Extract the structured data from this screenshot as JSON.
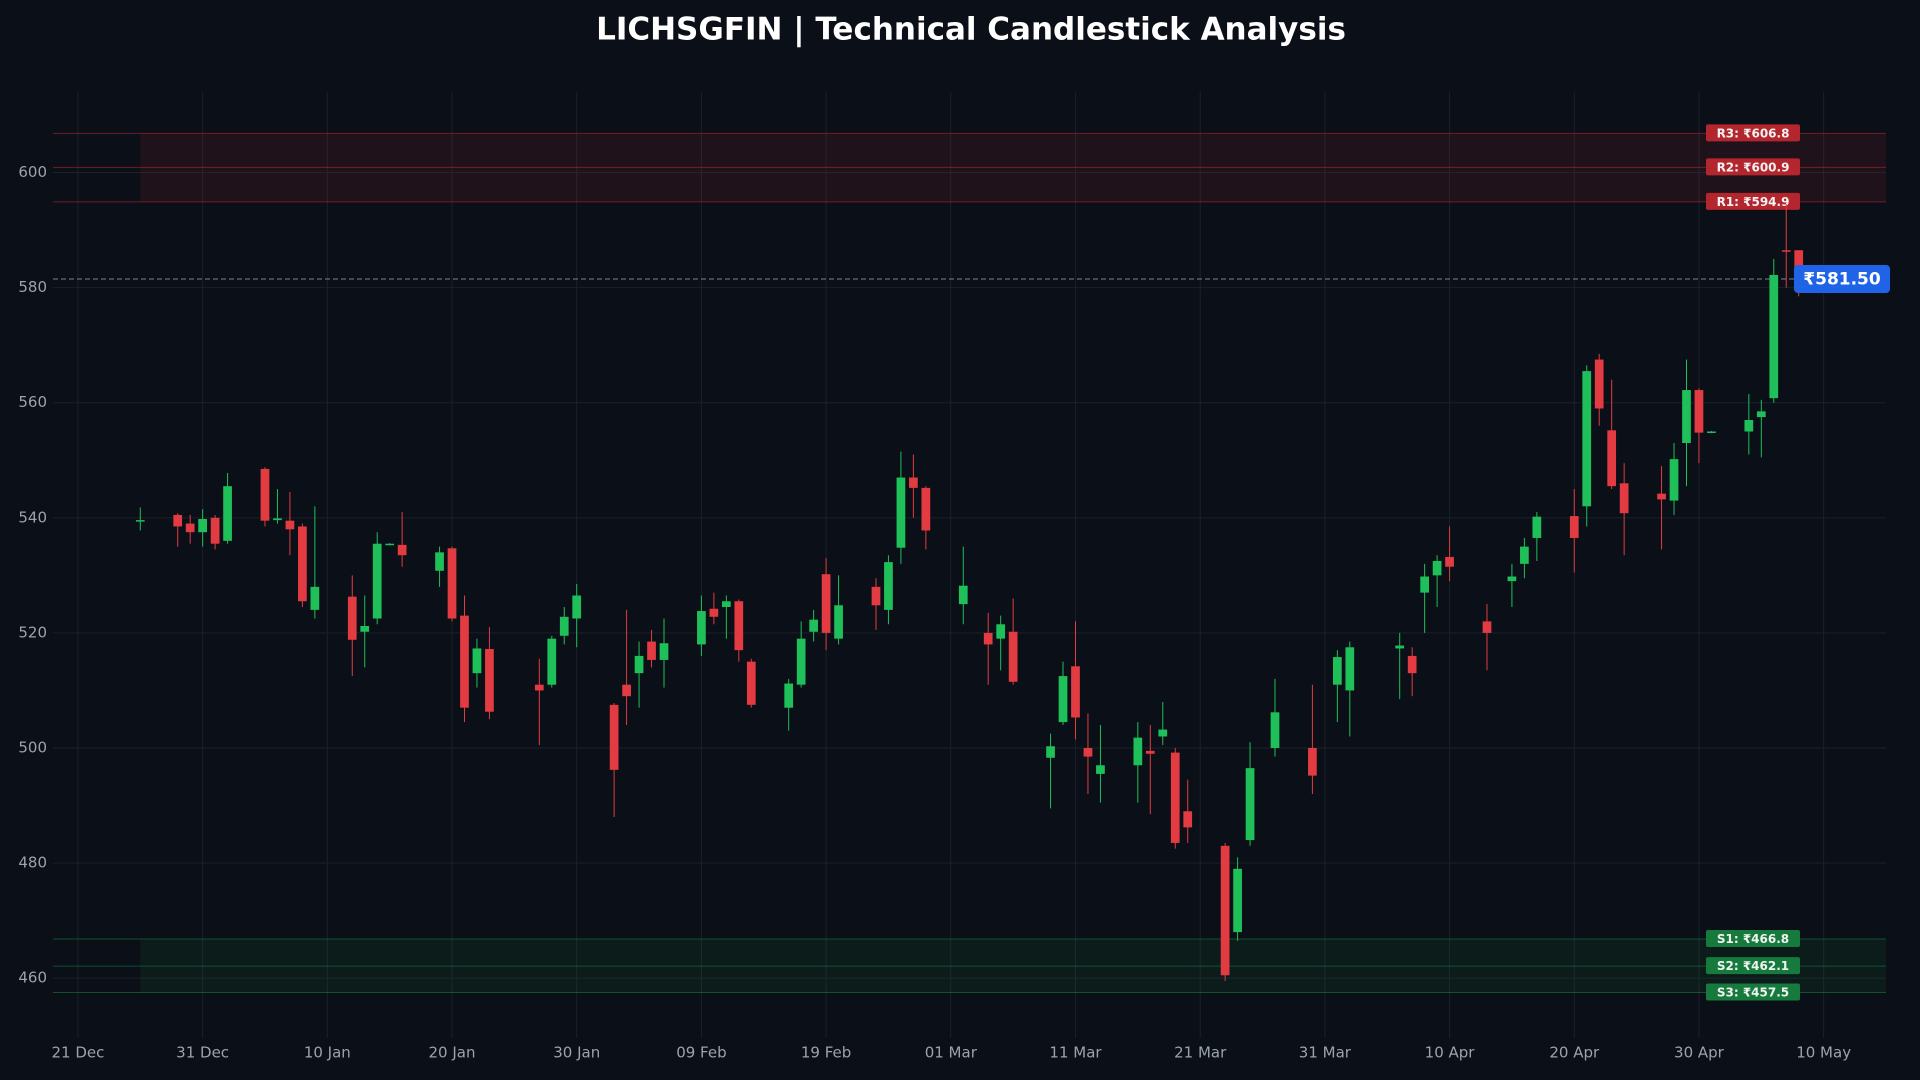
{
  "chart_data": {
    "type": "candlestick",
    "title": "LICHSGFIN | Technical Candlestick Analysis",
    "x": [
      "26 Dec",
      "29 Dec",
      "30 Dec",
      "31 Dec",
      "01 Jan",
      "02 Jan",
      "05 Jan",
      "06 Jan",
      "07 Jan",
      "08 Jan",
      "09 Jan",
      "12 Jan",
      "13 Jan",
      "14 Jan",
      "15 Jan",
      "16 Jan",
      "19 Jan",
      "20 Jan",
      "21 Jan",
      "22 Jan",
      "23 Jan",
      "27 Jan",
      "28 Jan",
      "29 Jan",
      "30 Jan",
      "02 Feb",
      "03 Feb",
      "04 Feb",
      "05 Feb",
      "06 Feb",
      "09 Feb",
      "10 Feb",
      "11 Feb",
      "12 Feb",
      "13 Feb",
      "16 Feb",
      "17 Feb",
      "18 Feb",
      "19 Feb",
      "20 Feb",
      "23 Feb",
      "24 Feb",
      "25 Feb",
      "26 Feb",
      "27 Feb",
      "02 Mar",
      "04 Mar",
      "05 Mar",
      "06 Mar",
      "09 Mar",
      "10 Mar",
      "11 Mar",
      "12 Mar",
      "13 Mar",
      "16 Mar",
      "17 Mar",
      "18 Mar",
      "19 Mar",
      "20 Mar",
      "23 Mar",
      "24 Mar",
      "25 Mar",
      "27 Mar",
      "30 Mar",
      "01 Apr",
      "02 Apr",
      "06 Apr",
      "07 Apr",
      "08 Apr",
      "09 Apr",
      "10 Apr",
      "13 Apr",
      "15 Apr",
      "16 Apr",
      "17 Apr",
      "20 Apr",
      "21 Apr",
      "22 Apr",
      "23 Apr",
      "24 Apr",
      "27 Apr",
      "28 Apr",
      "29 Apr",
      "30 Apr",
      "01 May",
      "04 May",
      "05 May",
      "06 May",
      "07 May",
      "08 May"
    ],
    "open": [
      539.4,
      540.5,
      539,
      537.5,
      540,
      536,
      548.5,
      539.6,
      539.5,
      538.5,
      524,
      526.3,
      520.2,
      522.5,
      535.3,
      535.3,
      530.8,
      534.7,
      523,
      513,
      517.2,
      511,
      511,
      519.5,
      522.5,
      507.5,
      511,
      513,
      518.5,
      515.3,
      518,
      524.2,
      524.5,
      525.5,
      515,
      507,
      511,
      520.2,
      530.2,
      519,
      528,
      524,
      534.8,
      547,
      545.2,
      525,
      520,
      519,
      520.2,
      498.3,
      504.5,
      514.2,
      500,
      495.5,
      497,
      499.5,
      502,
      499.2,
      489,
      483,
      468,
      484,
      500,
      500,
      511,
      510,
      517.3,
      516,
      527,
      530,
      533.2,
      522,
      529,
      532,
      536.5,
      540.3,
      542,
      567.5,
      555.2,
      546,
      544.2,
      543,
      553,
      562.2,
      554.8,
      555,
      557.5,
      560.8,
      586.5,
      586.5
    ],
    "high": [
      541.8,
      540.8,
      540.5,
      541.5,
      540.5,
      547.8,
      548.8,
      545,
      544.5,
      539,
      542,
      530,
      526.5,
      537.5,
      535.6,
      541,
      535,
      535,
      526.5,
      519,
      521,
      515.5,
      519.5,
      524.5,
      528.5,
      507.8,
      524,
      518.5,
      520.5,
      522.5,
      526.5,
      527,
      526.5,
      525.8,
      515.5,
      512,
      522,
      524,
      533,
      530,
      529.5,
      533.5,
      551.5,
      551,
      545.5,
      535,
      523.5,
      523,
      526,
      502.5,
      515,
      522,
      506,
      504,
      504.5,
      504,
      508,
      500,
      494.5,
      483.5,
      481,
      501,
      512,
      511,
      517,
      518.5,
      520,
      517.5,
      532,
      533.5,
      538.5,
      525,
      532,
      536.5,
      541,
      545,
      566.5,
      568.5,
      564,
      549.5,
      549,
      553,
      567.5,
      562.5,
      555.1,
      561.5,
      560.5,
      585,
      594.5,
      586.5
    ],
    "low": [
      537.8,
      535,
      535.5,
      535,
      534.5,
      535.5,
      538.5,
      539,
      533.5,
      524.5,
      522.5,
      512.5,
      514,
      521.5,
      535.2,
      531.5,
      528,
      522,
      504.5,
      510.5,
      505,
      500.5,
      510.5,
      518,
      517.5,
      488,
      504,
      507,
      514,
      510.5,
      516,
      521.5,
      519,
      515,
      507,
      503,
      510.5,
      518.5,
      517,
      518,
      520.5,
      521.5,
      532,
      540,
      534.5,
      521.5,
      511,
      513.5,
      511,
      489.5,
      504,
      501.5,
      492,
      490.5,
      490.5,
      488.5,
      500.5,
      482.5,
      483.5,
      459.5,
      466.5,
      483,
      498.5,
      492,
      504.5,
      502,
      508.5,
      509,
      520,
      524.5,
      529,
      513.5,
      524.5,
      529.5,
      532.5,
      530.5,
      538.5,
      556,
      545,
      533.5,
      534.5,
      540.5,
      545.5,
      549.5,
      554.7,
      551,
      550.5,
      560,
      580,
      578.5
    ],
    "close": [
      539.6,
      538.5,
      537.5,
      539.8,
      535.5,
      545.5,
      539.5,
      539.9,
      538,
      525.5,
      528,
      518.8,
      521.2,
      535.5,
      535.5,
      533.5,
      534,
      522.5,
      507,
      517.3,
      506.3,
      510,
      519,
      522.8,
      526.5,
      496.2,
      509,
      516,
      515.3,
      518.2,
      523.8,
      522.8,
      525.5,
      517,
      507.5,
      511.2,
      519,
      522.3,
      520,
      524.8,
      524.8,
      532.3,
      547,
      545.2,
      537.8,
      528.2,
      518,
      521.5,
      511.5,
      500.3,
      512.5,
      505.3,
      498.5,
      497,
      501.8,
      499,
      503.2,
      483.5,
      486.2,
      460.5,
      479,
      496.5,
      506.2,
      495.2,
      515.8,
      517.5,
      517.8,
      513,
      529.8,
      532.5,
      531.5,
      520,
      529.8,
      535,
      540.2,
      536.5,
      565.5,
      559,
      545.5,
      540.8,
      543.2,
      550.2,
      562.2,
      554.8,
      555,
      557,
      558.5,
      582.2,
      586.3,
      581.5
    ],
    "up_color": "#1fbf5a",
    "down_color": "#e23b41",
    "xlim": [
      "19 Dec",
      "15 May"
    ],
    "xticks": [
      "21 Dec",
      "31 Dec",
      "10 Jan",
      "20 Jan",
      "30 Jan",
      "09 Feb",
      "19 Feb",
      "01 Mar",
      "11 Mar",
      "21 Mar",
      "31 Mar",
      "10 Apr",
      "20 Apr",
      "30 Apr",
      "10 May"
    ],
    "ylim": [
      449.6,
      614
    ],
    "yticks": [
      460,
      480,
      500,
      520,
      540,
      560,
      580,
      600
    ],
    "grid": true,
    "levels": [
      {
        "value": 606.8,
        "label": "R3: ₹606.8",
        "color": "#b3262e"
      },
      {
        "value": 600.9,
        "label": "R2: ₹600.9",
        "color": "#b3262e"
      },
      {
        "value": 594.9,
        "label": "R1: ₹594.9",
        "color": "#b3262e"
      },
      {
        "value": 466.8,
        "label": "S1: ₹466.8",
        "color": "#157a3b"
      },
      {
        "value": 462.1,
        "label": "S2: ₹462.1",
        "color": "#157a3b"
      },
      {
        "value": 457.5,
        "label": "S3: ₹457.5",
        "color": "#157a3b"
      }
    ],
    "last_price": {
      "value": 581.5,
      "label": "₹581.50",
      "color": "#1f63e6"
    }
  }
}
